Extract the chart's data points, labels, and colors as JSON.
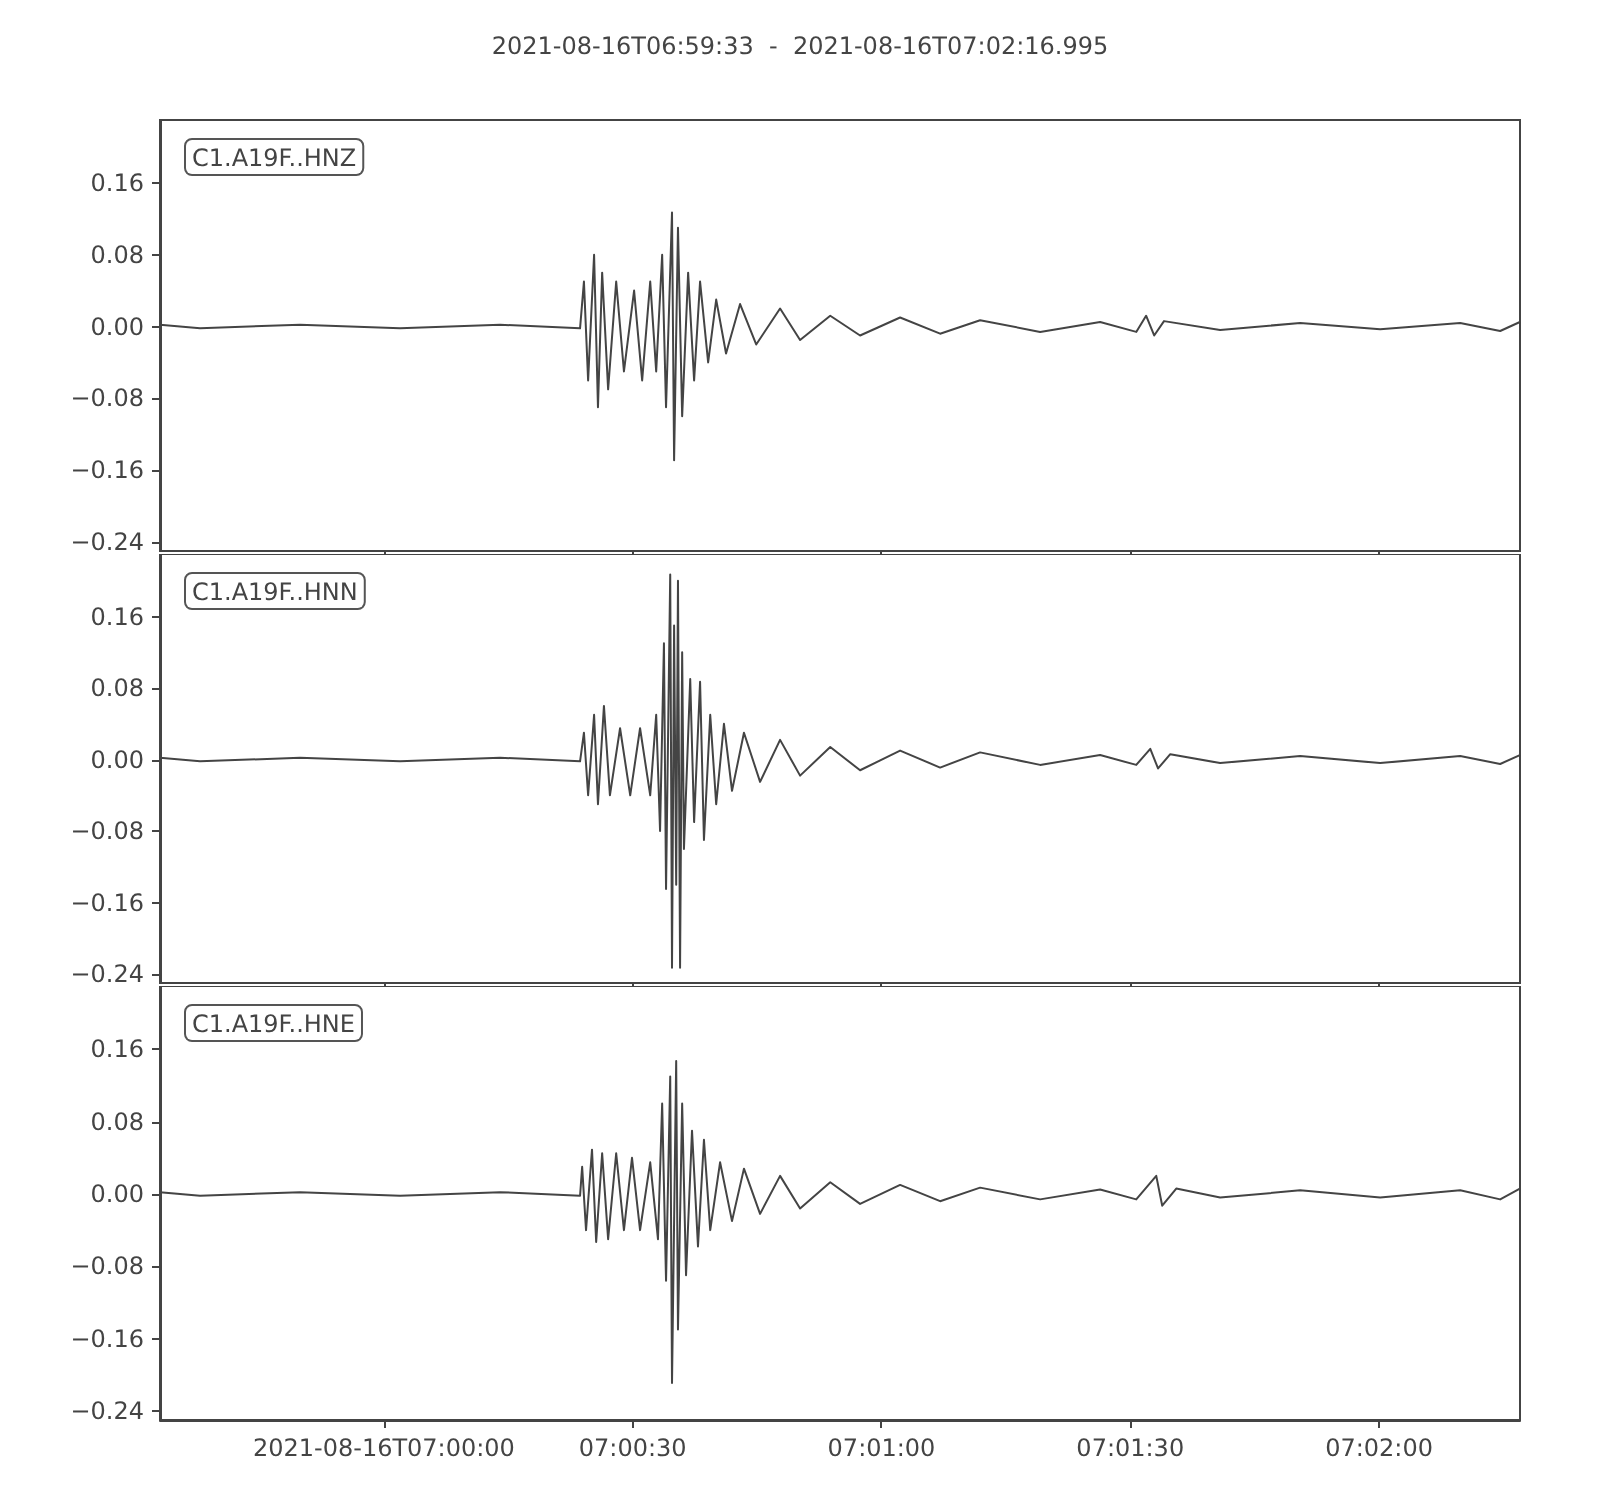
{
  "chart_data": [
    {
      "type": "line",
      "title": "2021-08-16T06:59:33  -  2021-08-16T07:02:16.995",
      "annotations": [
        "C1.A19F..HNZ"
      ],
      "tick_labels": "y",
      "grid": false,
      "xlim": [
        6.9925,
        7.038054
      ],
      "xticks": [
        {
          "value": 7,
          "label": null
        },
        {
          "value": 7.008333,
          "label": null
        },
        {
          "value": 7.016667,
          "label": null
        },
        {
          "value": 7.025,
          "label": null
        },
        {
          "value": 7.033333,
          "label": null
        }
      ],
      "ylim": [
        -0.25,
        0.23
      ],
      "yticks": [
        {
          "value": -0.24,
          "label": "−0.24"
        },
        {
          "value": -0.16,
          "label": "−0.16"
        },
        {
          "value": -0.08,
          "label": "−0.08"
        },
        {
          "value": 0,
          "label": "0.00"
        },
        {
          "value": 0.08,
          "label": "0.08"
        },
        {
          "value": 0.16,
          "label": "0.16"
        }
      ],
      "series": [
        {
          "color": "#444444",
          "x": [
            6.9925,
            6.99384,
            6.99719,
            7.00054,
            7.00389,
            7.00657,
            7.0067,
            7.00684,
            7.00704,
            7.00717,
            7.00731,
            7.00751,
            7.00778,
            7.00804,
            7.00838,
            7.00865,
            7.00892,
            7.00912,
            7.00932,
            7.00945,
            7.00965,
            7.00972,
            7.00985,
            7.00999,
            7.01019,
            7.01039,
            7.01059,
            7.01086,
            7.01113,
            7.01146,
            7.01193,
            7.01247,
            7.01327,
            7.01394,
            7.01495,
            7.01595,
            7.01729,
            7.01863,
            7.01997,
            7.02198,
            7.02399,
            7.0252,
            7.02553,
            7.0258,
            7.02613,
            7.02801,
            7.03069,
            7.03337,
            7.03605,
            7.03739,
            7.03805
          ],
          "values": [
            0.002,
            -0.002,
            0.002,
            -0.002,
            0.002,
            -0.002,
            0.05,
            -0.06,
            0.08,
            -0.09,
            0.06,
            -0.07,
            0.05,
            -0.05,
            0.04,
            -0.06,
            0.05,
            -0.05,
            0.08,
            -0.09,
            0.127,
            -0.149,
            0.11,
            -0.1,
            0.06,
            -0.06,
            0.05,
            -0.04,
            0.03,
            -0.03,
            0.025,
            -0.02,
            0.02,
            -0.015,
            0.012,
            -0.01,
            0.01,
            -0.008,
            0.007,
            -0.006,
            0.005,
            -0.006,
            0.012,
            -0.01,
            0.006,
            -0.004,
            0.004,
            -0.003,
            0.004,
            -0.005,
            0.005
          ]
        }
      ]
    },
    {
      "type": "line",
      "annotations": [
        "C1.A19F..HNN"
      ],
      "tick_labels": "y",
      "grid": false,
      "xlim": [
        6.9925,
        7.038054
      ],
      "xticks": [
        {
          "value": 7,
          "label": null
        },
        {
          "value": 7.008333,
          "label": null
        },
        {
          "value": 7.016667,
          "label": null
        },
        {
          "value": 7.025,
          "label": null
        },
        {
          "value": 7.033333,
          "label": null
        }
      ],
      "ylim": [
        -0.25,
        0.23
      ],
      "yticks": [
        {
          "value": -0.24,
          "label": "−0.24"
        },
        {
          "value": -0.16,
          "label": "−0.16"
        },
        {
          "value": -0.08,
          "label": "−0.08"
        },
        {
          "value": 0,
          "label": "0.00"
        },
        {
          "value": 0.08,
          "label": "0.08"
        },
        {
          "value": 0.16,
          "label": "0.16"
        }
      ],
      "series": [
        {
          "color": "#444444",
          "x": [
            6.9925,
            6.99384,
            6.99719,
            7.00054,
            7.00389,
            7.00657,
            7.0067,
            7.00684,
            7.00704,
            7.00717,
            7.00737,
            7.00757,
            7.00791,
            7.00825,
            7.00858,
            7.00892,
            7.00912,
            7.00925,
            7.00938,
            7.00945,
            7.00959,
            7.00965,
            7.00972,
            7.00979,
            7.00985,
            7.00992,
            7.00999,
            7.01005,
            7.01026,
            7.01039,
            7.01059,
            7.01072,
            7.01093,
            7.01113,
            7.01139,
            7.01166,
            7.01206,
            7.0126,
            7.01327,
            7.01394,
            7.01495,
            7.01595,
            7.01729,
            7.01863,
            7.01997,
            7.02198,
            7.02399,
            7.0252,
            7.02567,
            7.02593,
            7.02634,
            7.02801,
            7.03069,
            7.03337,
            7.03605,
            7.03739,
            7.03805
          ],
          "values": [
            0.002,
            -0.002,
            0.002,
            -0.002,
            0.002,
            -0.002,
            0.03,
            -0.04,
            0.05,
            -0.05,
            0.06,
            -0.04,
            0.035,
            -0.04,
            0.035,
            -0.04,
            0.05,
            -0.08,
            0.13,
            -0.145,
            0.207,
            -0.233,
            0.15,
            -0.14,
            0.2,
            -0.233,
            0.12,
            -0.1,
            0.09,
            -0.07,
            0.087,
            -0.09,
            0.05,
            -0.05,
            0.04,
            -0.035,
            0.03,
            -0.025,
            0.022,
            -0.018,
            0.014,
            -0.012,
            0.01,
            -0.009,
            0.008,
            -0.006,
            0.005,
            -0.006,
            0.012,
            -0.01,
            0.006,
            -0.004,
            0.004,
            -0.004,
            0.004,
            -0.005,
            0.005
          ]
        }
      ]
    },
    {
      "type": "line",
      "annotations": [
        "C1.A19F..HNE"
      ],
      "grid": false,
      "xlim": [
        6.9925,
        7.038054
      ],
      "xticks": [
        {
          "value": 7,
          "label": "2021-08-16T07:00:00"
        },
        {
          "value": 7.008333,
          "label": "07:00:30"
        },
        {
          "value": 7.016667,
          "label": "07:01:00"
        },
        {
          "value": 7.025,
          "label": "07:01:30"
        },
        {
          "value": 7.033333,
          "label": "07:02:00"
        }
      ],
      "ylim": [
        -0.25,
        0.23
      ],
      "yticks": [
        {
          "value": -0.24,
          "label": "−0.24"
        },
        {
          "value": -0.16,
          "label": "−0.16"
        },
        {
          "value": -0.08,
          "label": "−0.08"
        },
        {
          "value": 0,
          "label": "0.00"
        },
        {
          "value": 0.08,
          "label": "0.08"
        },
        {
          "value": 0.16,
          "label": "0.16"
        }
      ],
      "series": [
        {
          "color": "#444444",
          "x": [
            6.9925,
            6.99384,
            6.99719,
            7.00054,
            7.00389,
            7.00657,
            7.00664,
            7.00677,
            7.00697,
            7.00711,
            7.00731,
            7.00751,
            7.00778,
            7.00804,
            7.00831,
            7.00858,
            7.00892,
            7.00918,
            7.00932,
            7.00945,
            7.00959,
            7.00965,
            7.00979,
            7.00985,
            7.00999,
            7.01012,
            7.01032,
            7.01052,
            7.01072,
            7.01093,
            7.01126,
            7.01166,
            7.01206,
            7.0126,
            7.01327,
            7.01394,
            7.01495,
            7.01595,
            7.01729,
            7.01863,
            7.01997,
            7.02198,
            7.02399,
            7.0252,
            7.02587,
            7.02607,
            7.02654,
            7.02801,
            7.03069,
            7.03337,
            7.03605,
            7.03739,
            7.03805
          ],
          "values": [
            0.002,
            -0.002,
            0.002,
            -0.002,
            0.002,
            -0.002,
            0.03,
            -0.04,
            0.049,
            -0.053,
            0.045,
            -0.05,
            0.045,
            -0.04,
            0.04,
            -0.04,
            0.035,
            -0.05,
            0.1,
            -0.096,
            0.13,
            -0.209,
            0.147,
            -0.15,
            0.1,
            -0.09,
            0.07,
            -0.058,
            0.06,
            -0.04,
            0.035,
            -0.03,
            0.028,
            -0.022,
            0.02,
            -0.016,
            0.013,
            -0.011,
            0.01,
            -0.008,
            0.007,
            -0.006,
            0.005,
            -0.006,
            0.02,
            -0.013,
            0.006,
            -0.004,
            0.004,
            -0.004,
            0.004,
            -0.006,
            0.006
          ]
        }
      ]
    }
  ]
}
